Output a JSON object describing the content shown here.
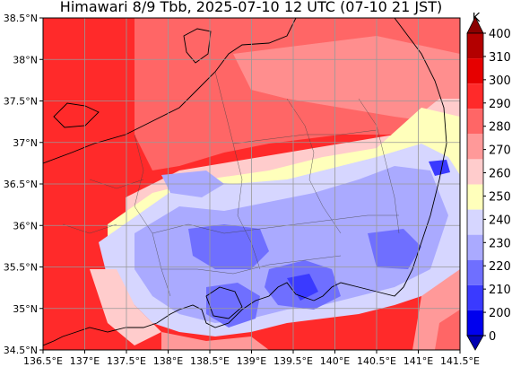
{
  "title": "Himawari 8/9 Tbb, 2025-07-10 12 UTC (07-10 21 JST)",
  "map": {
    "type": "raster-contour-map",
    "quantity": "Brightness temperature",
    "lon_range": [
      136.5,
      141.5
    ],
    "lat_range": [
      34.5,
      38.5
    ],
    "grid": true,
    "x_ticks": [
      "136.5°E",
      "137°E",
      "137.5°E",
      "138°E",
      "138.5°E",
      "139°E",
      "139.5°E",
      "140°E",
      "140.5°E",
      "141°E",
      "141.5°E"
    ],
    "y_ticks": [
      "38.5°N",
      "38°N",
      "37.5°N",
      "37°N",
      "36.5°N",
      "36°N",
      "35.5°N",
      "35°N",
      "34.5°N"
    ]
  },
  "colorbar": {
    "unit": "K",
    "ticks": [
      "400",
      "310",
      "300",
      "290",
      "280",
      "270",
      "260",
      "250",
      "240",
      "230",
      "220",
      "210",
      "200",
      "0"
    ],
    "colors": [
      "#8b0000",
      "#b30000",
      "#e60000",
      "#ff2a2a",
      "#ff6666",
      "#ff9999",
      "#ffcccc",
      "#ffffbb",
      "#d6d6ff",
      "#aaaaff",
      "#6f6fff",
      "#3a3aff",
      "#0000ee",
      "#0000b0"
    ]
  }
}
